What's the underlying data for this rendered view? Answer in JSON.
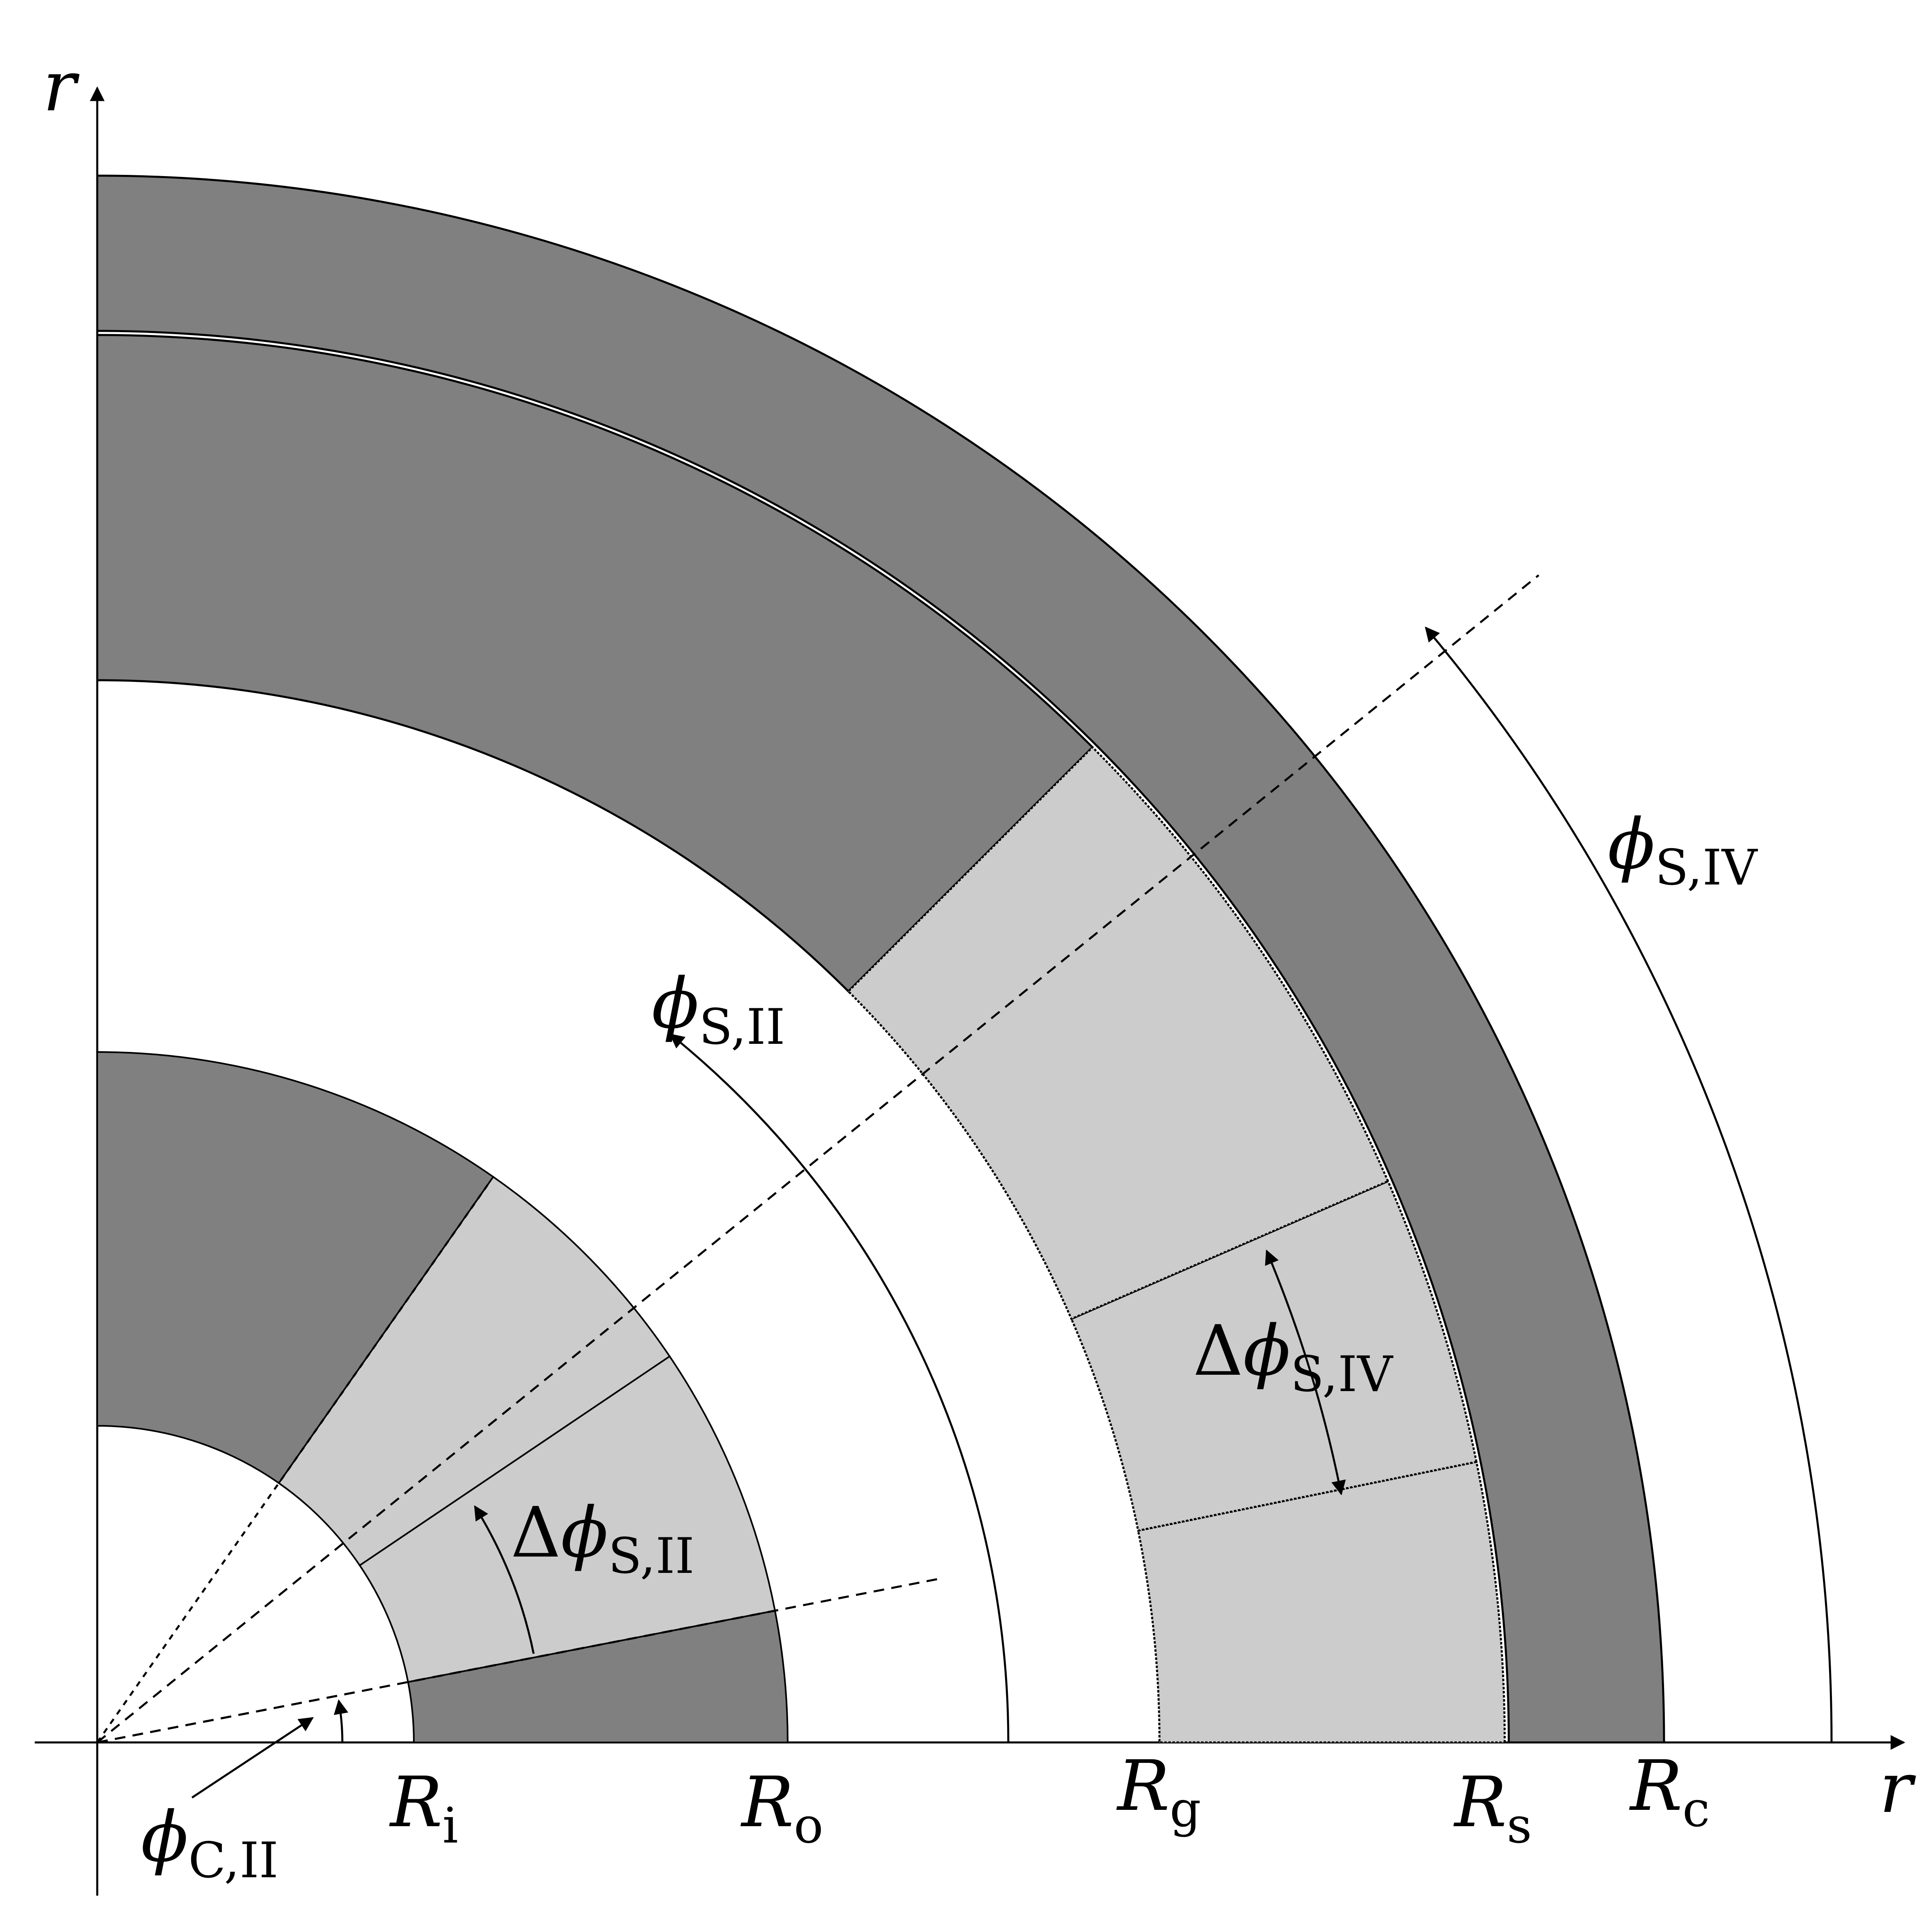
{
  "colors": {
    "background": "#ffffff",
    "iron": "#808080",
    "magnet": "#cccccc",
    "line": "#000000"
  },
  "axes": {
    "x_label": "r",
    "y_label": "r"
  },
  "radii": {
    "Ri": {
      "symbol": "R",
      "subscript": "i"
    },
    "Ro": {
      "symbol": "R",
      "subscript": "o"
    },
    "Rg": {
      "symbol": "R",
      "subscript": "g"
    },
    "Rs": {
      "symbol": "R",
      "subscript": "s"
    },
    "Rc": {
      "symbol": "R",
      "subscript": "c"
    }
  },
  "angles": {
    "phi_C_II": {
      "symbol": "ϕ",
      "subscript": "C,II"
    },
    "phi_S_II": {
      "symbol": "ϕ",
      "subscript": "S,II"
    },
    "phi_S_IV": {
      "symbol": "ϕ",
      "subscript": "S,IV"
    },
    "dphi_S_II": {
      "prefix": "Δ",
      "symbol": "ϕ",
      "subscript": "S,II"
    },
    "dphi_S_IV": {
      "prefix": "Δ",
      "symbol": "ϕ",
      "subscript": "S,IV"
    }
  }
}
